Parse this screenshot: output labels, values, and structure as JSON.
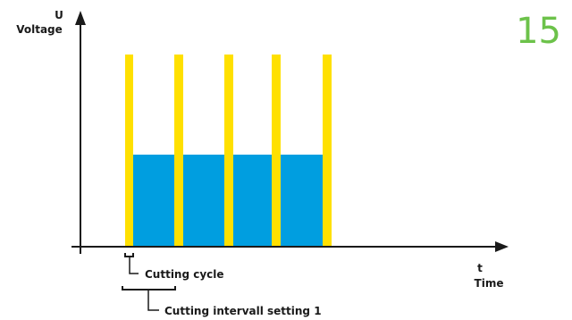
{
  "page_number": "15",
  "y_axis": {
    "symbol": "U",
    "label": "Voltage"
  },
  "x_axis": {
    "symbol": "t",
    "label": "Time"
  },
  "annotations": {
    "cycle": "Cutting cycle",
    "interval": "Cutting intervall setting 1"
  },
  "colors": {
    "pulse_spike": "#ffe000",
    "pulse_plateau": "#009ee0",
    "page_number": "#6cc24a",
    "axis": "#1a1a1a"
  }
}
